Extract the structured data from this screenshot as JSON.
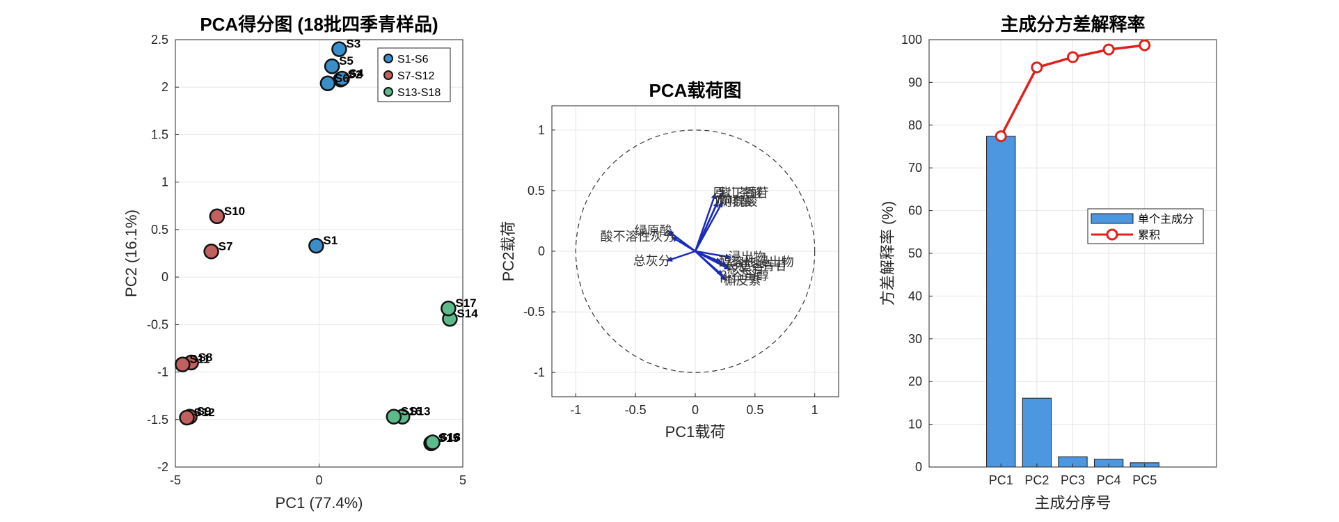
{
  "chart_data": [
    {
      "type": "scatter",
      "title": "PCA得分图 (18批四季青样品)",
      "xlabel": "PC1 (77.4%)",
      "ylabel": "PC2 (16.1%)",
      "xlim": [
        -5,
        5
      ],
      "ylim": [
        -2,
        2.5
      ],
      "xticks": [
        -5,
        0,
        5
      ],
      "yticks": [
        -2,
        -1.5,
        -1,
        -0.5,
        0,
        0.5,
        1,
        1.5,
        2,
        2.5
      ],
      "grid": true,
      "legend_position": "top-right",
      "series": [
        {
          "name": "S1-S6",
          "color": "#3a8fc9",
          "points": [
            {
              "label": "S1",
              "x": -0.1,
              "y": 0.33
            },
            {
              "label": "S2",
              "x": 0.75,
              "y": 2.08
            },
            {
              "label": "S3",
              "x": 0.7,
              "y": 2.4
            },
            {
              "label": "S4",
              "x": 0.8,
              "y": 2.09
            },
            {
              "label": "S5",
              "x": 0.45,
              "y": 2.22
            },
            {
              "label": "S6",
              "x": 0.3,
              "y": 2.04
            }
          ]
        },
        {
          "name": "S7-S12",
          "color": "#c0605f",
          "points": [
            {
              "label": "S7",
              "x": -3.75,
              "y": 0.27
            },
            {
              "label": "S8",
              "x": -4.45,
              "y": -0.9
            },
            {
              "label": "S9",
              "x": -4.5,
              "y": -1.47
            },
            {
              "label": "S10",
              "x": -3.55,
              "y": 0.64
            },
            {
              "label": "S11",
              "x": -4.75,
              "y": -0.92
            },
            {
              "label": "S12",
              "x": -4.6,
              "y": -1.48
            }
          ]
        },
        {
          "name": "S13-S18",
          "color": "#5cba8b",
          "points": [
            {
              "label": "S13",
              "x": 2.9,
              "y": -1.47
            },
            {
              "label": "S14",
              "x": 4.55,
              "y": -0.44
            },
            {
              "label": "S15",
              "x": 3.9,
              "y": -1.75
            },
            {
              "label": "S16",
              "x": 2.6,
              "y": -1.47
            },
            {
              "label": "S17",
              "x": 4.5,
              "y": -0.33
            },
            {
              "label": "S18",
              "x": 3.95,
              "y": -1.74
            }
          ]
        }
      ]
    },
    {
      "type": "biplot",
      "title": "PCA载荷图",
      "xlabel": "PC1载荷",
      "ylabel": "PC2载荷",
      "xlim": [
        -1.2,
        1.2
      ],
      "ylim": [
        -1.2,
        1.2
      ],
      "xticks": [
        -1,
        -0.5,
        0,
        0.5,
        1
      ],
      "yticks": [
        -1,
        -0.5,
        0,
        0.5,
        1
      ],
      "grid": true,
      "unit_circle": true,
      "arrow_color": "#1a2bb8",
      "loadings": [
        {
          "label": "绿原酸",
          "x": -0.23,
          "y": 0.17
        },
        {
          "label": "酸不溶性灰分",
          "x": -0.2,
          "y": 0.12
        },
        {
          "label": "总灰分",
          "x": -0.24,
          "y": -0.08
        },
        {
          "label": "原儿茶酸",
          "x": 0.17,
          "y": 0.48
        },
        {
          "label": "紫丁香苷",
          "x": 0.22,
          "y": 0.48
        },
        {
          "label": "咖啡酸",
          "x": 0.19,
          "y": 0.41
        },
        {
          "label": "阿魏酸",
          "x": 0.23,
          "y": 0.41
        },
        {
          "label": "浸出物",
          "x": 0.3,
          "y": -0.05
        },
        {
          "label": "醇溶性浸出物",
          "x": 0.22,
          "y": -0.09
        },
        {
          "label": "长梗冬青苷",
          "x": 0.27,
          "y": -0.12
        },
        {
          "label": "总皂苷",
          "x": 0.29,
          "y": -0.15
        },
        {
          "label": "β-谷甾醇",
          "x": 0.23,
          "y": -0.2
        },
        {
          "label": "槲皮素",
          "x": 0.26,
          "y": -0.24
        }
      ]
    },
    {
      "type": "bar",
      "title": "主成分方差解释率",
      "xlabel": "主成分序号",
      "ylabel": "方差解释率 (%)",
      "categories": [
        "PC1",
        "PC2",
        "PC3",
        "PC4",
        "PC5"
      ],
      "ylim": [
        0,
        100
      ],
      "yticks": [
        0,
        10,
        20,
        30,
        40,
        50,
        60,
        70,
        80,
        90,
        100
      ],
      "grid": true,
      "legend_position": "right",
      "series": [
        {
          "name": "单个主成分",
          "type": "bar",
          "color": "#4d96e0",
          "values": [
            77.4,
            16.1,
            2.4,
            1.8,
            1.0
          ]
        },
        {
          "name": "累积",
          "type": "line",
          "color": "#e0201b",
          "values": [
            77.4,
            93.5,
            95.9,
            97.7,
            98.7
          ]
        }
      ]
    }
  ]
}
